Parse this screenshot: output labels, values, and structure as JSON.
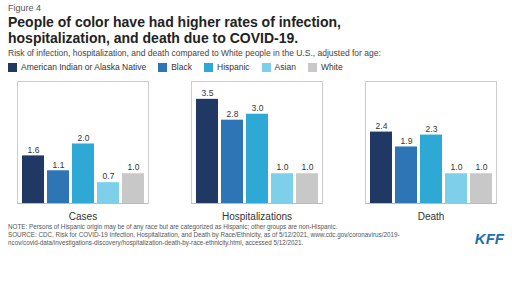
{
  "chart_data": {
    "type": "bar",
    "title": "People of color have had higher rates of infection,\nhospitalization, and death due to COVID-19.",
    "subtitle": "Risk of infection, hospitalization, and death compared to White people in the U.S., adjusted for age:",
    "annotations": [
      "Figure 4",
      "NOTE: Persons of Hispanic origin may be of any race but are categorized as Hispanic; other groups are non-Hispanic.",
      "SOURCE: CDC, Risk for COVID-19 Infection, Hospitalization, and Death by Race/Ethnicity, as of 5/12/2021, www.cdc.gov/coronavirus/2019-",
      "ncov/covid-data/investigations-discovery/hospitalization-death-by-race-ethnicity.html,  accessed 5/12/2021.",
      "KFF"
    ],
    "categories": [
      "Cases",
      "Hospitalizations",
      "Death"
    ],
    "series": [
      {
        "name": "American Indian or Alaska Native",
        "color": "#1f3864",
        "values": [
          1.6,
          3.5,
          2.4
        ],
        "value_labels": [
          "1.6",
          "3.5",
          "2.4"
        ]
      },
      {
        "name": "Black",
        "color": "#2e75b6",
        "values": [
          1.1,
          2.8,
          1.9
        ],
        "value_labels": [
          "1.1",
          "2.8",
          "1.9"
        ]
      },
      {
        "name": "Hispanic",
        "color": "#2ea8d5",
        "values": [
          2.0,
          3.0,
          2.3
        ],
        "value_labels": [
          "2.0",
          "3.0",
          "2.3"
        ]
      },
      {
        "name": "Asian",
        "color": "#7ecfea",
        "values": [
          0.7,
          1.0,
          1.0
        ],
        "value_labels": [
          "0.7",
          "1.0",
          "1.0"
        ]
      },
      {
        "name": "White",
        "color": "#c8c8c8",
        "values": [
          1.0,
          1.0,
          1.0
        ],
        "value_labels": [
          "1.0",
          "1.0",
          "1.0"
        ]
      }
    ],
    "ylim": [
      0,
      4.1
    ],
    "yticks": [],
    "tick_labels": "x",
    "data_labels": true,
    "grid": false,
    "legend": "top"
  }
}
